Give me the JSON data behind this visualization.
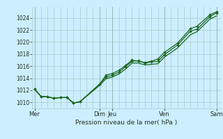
{
  "xlabel": "Pression niveau de la mer( hPa )",
  "bg_color": "#cceeff",
  "grid_color": "#aacccc",
  "line_color": "#1a6620",
  "day_labels": [
    "Mer",
    "Dim",
    "Jeu",
    "Ven",
    "Sam"
  ],
  "day_positions": [
    0,
    60,
    72,
    120,
    168
  ],
  "yticks": [
    1010,
    1012,
    1014,
    1016,
    1018,
    1020,
    1022,
    1024
  ],
  "ylim": [
    1009.0,
    1025.8
  ],
  "xlim": [
    -2,
    172
  ],
  "series": [
    [
      1012.2,
      1011.0,
      1010.9,
      1010.7,
      1010.8,
      1010.8,
      1009.9,
      1010.1,
      1013.0,
      1014.2,
      1014.5,
      1015.0,
      1015.9,
      1016.8,
      1016.9,
      1016.5,
      1016.7,
      1016.8,
      1017.9,
      1019.5,
      1021.8,
      1022.1,
      1024.2,
      1024.8
    ],
    [
      1012.2,
      1011.0,
      1010.9,
      1010.7,
      1010.8,
      1010.8,
      1009.9,
      1010.1,
      1013.0,
      1014.5,
      1014.8,
      1015.3,
      1016.1,
      1017.0,
      1016.8,
      1016.6,
      1016.8,
      1017.2,
      1018.3,
      1019.8,
      1022.2,
      1022.6,
      1024.5,
      1025.0
    ],
    [
      1012.2,
      1011.0,
      1010.9,
      1010.7,
      1010.8,
      1010.8,
      1009.9,
      1010.1,
      1012.8,
      1013.9,
      1014.2,
      1014.7,
      1015.5,
      1016.5,
      1016.5,
      1016.2,
      1016.3,
      1016.4,
      1017.5,
      1019.0,
      1021.2,
      1021.7,
      1023.8,
      1024.3
    ]
  ],
  "x_positions": [
    0,
    6,
    12,
    18,
    24,
    30,
    36,
    42,
    60,
    66,
    72,
    78,
    84,
    90,
    96,
    102,
    108,
    114,
    120,
    132,
    144,
    150,
    162,
    168
  ]
}
